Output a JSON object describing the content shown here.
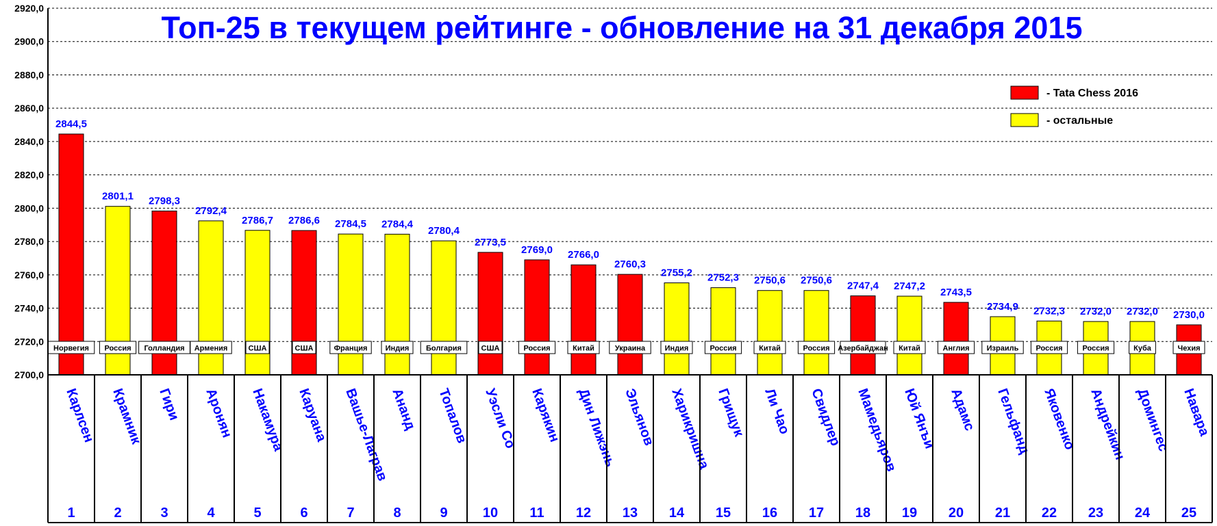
{
  "chart_data": {
    "type": "bar",
    "title": "Топ-25 в текущем рейтинге - обновление на 31 декабря 2015",
    "ylim": [
      2700,
      2920
    ],
    "ytick_step": 20,
    "ytick_labels": [
      "2700,0",
      "2720,0",
      "2740,0",
      "2760,0",
      "2780,0",
      "2800,0",
      "2820,0",
      "2840,0",
      "2860,0",
      "2880,0",
      "2900,0",
      "2920,0"
    ],
    "grid": true,
    "legend_position": "top-right",
    "legend": [
      {
        "label": "- Tata Chess 2016",
        "color": "#ff0000"
      },
      {
        "label": "- остальные",
        "color": "#ffff00"
      }
    ],
    "players": [
      {
        "rank": "1",
        "name": "Карлсен",
        "country": "Норвегия",
        "value": 2844.5,
        "label": "2844,5",
        "tata": true
      },
      {
        "rank": "2",
        "name": "Крамник",
        "country": "Россия",
        "value": 2801.1,
        "label": "2801,1",
        "tata": false
      },
      {
        "rank": "3",
        "name": "Гири",
        "country": "Голландия",
        "value": 2798.3,
        "label": "2798,3",
        "tata": true
      },
      {
        "rank": "4",
        "name": "Аронян",
        "country": "Армения",
        "value": 2792.4,
        "label": "2792,4",
        "tata": false
      },
      {
        "rank": "5",
        "name": "Накамура",
        "country": "США",
        "value": 2786.7,
        "label": "2786,7",
        "tata": false
      },
      {
        "rank": "6",
        "name": "Каруана",
        "country": "США",
        "value": 2786.6,
        "label": "2786,6",
        "tata": true
      },
      {
        "rank": "7",
        "name": "Вашье-Лаграв",
        "country": "Франция",
        "value": 2784.5,
        "label": "2784,5",
        "tata": false
      },
      {
        "rank": "8",
        "name": "Ананд",
        "country": "Индия",
        "value": 2784.4,
        "label": "2784,4",
        "tata": false
      },
      {
        "rank": "9",
        "name": "Топалов",
        "country": "Болгария",
        "value": 2780.4,
        "label": "2780,4",
        "tata": false
      },
      {
        "rank": "10",
        "name": "Уэсли Со",
        "country": "США",
        "value": 2773.5,
        "label": "2773,5",
        "tata": true
      },
      {
        "rank": "11",
        "name": "Карякин",
        "country": "Россия",
        "value": 2769.0,
        "label": "2769,0",
        "tata": true
      },
      {
        "rank": "12",
        "name": "Дин Лижэнь",
        "country": "Китай",
        "value": 2766.0,
        "label": "2766,0",
        "tata": true
      },
      {
        "rank": "13",
        "name": "Эльянов",
        "country": "Украина",
        "value": 2760.3,
        "label": "2760,3",
        "tata": true
      },
      {
        "rank": "14",
        "name": "Харикришна",
        "country": "Индия",
        "value": 2755.2,
        "label": "2755,2",
        "tata": false
      },
      {
        "rank": "15",
        "name": "Грищук",
        "country": "Россия",
        "value": 2752.3,
        "label": "2752,3",
        "tata": false
      },
      {
        "rank": "16",
        "name": "Ли Чао",
        "country": "Китай",
        "value": 2750.6,
        "label": "2750,6",
        "tata": false
      },
      {
        "rank": "17",
        "name": "Свидлер",
        "country": "Россия",
        "value": 2750.6,
        "label": "2750,6",
        "tata": false
      },
      {
        "rank": "18",
        "name": "Мамедьяров",
        "country": "Азербайджан",
        "value": 2747.4,
        "label": "2747,4",
        "tata": true
      },
      {
        "rank": "19",
        "name": "Юй Янъи",
        "country": "Китай",
        "value": 2747.2,
        "label": "2747,2",
        "tata": false
      },
      {
        "rank": "20",
        "name": "Адамс",
        "country": "Англия",
        "value": 2743.5,
        "label": "2743,5",
        "tata": true
      },
      {
        "rank": "21",
        "name": "Гельфанд",
        "country": "Израиль",
        "value": 2734.9,
        "label": "2734,9",
        "tata": false
      },
      {
        "rank": "22",
        "name": "Яковенко",
        "country": "Россия",
        "value": 2732.3,
        "label": "2732,3",
        "tata": false
      },
      {
        "rank": "23",
        "name": "Андрейкин",
        "country": "Россия",
        "value": 2732.0,
        "label": "2732,0",
        "tata": false
      },
      {
        "rank": "24",
        "name": "Домингес",
        "country": "Куба",
        "value": 2732.0,
        "label": "2732,0",
        "tata": false
      },
      {
        "rank": "25",
        "name": "Навара",
        "country": "Чехия",
        "value": 2730.0,
        "label": "2730,0",
        "tata": true
      }
    ]
  }
}
